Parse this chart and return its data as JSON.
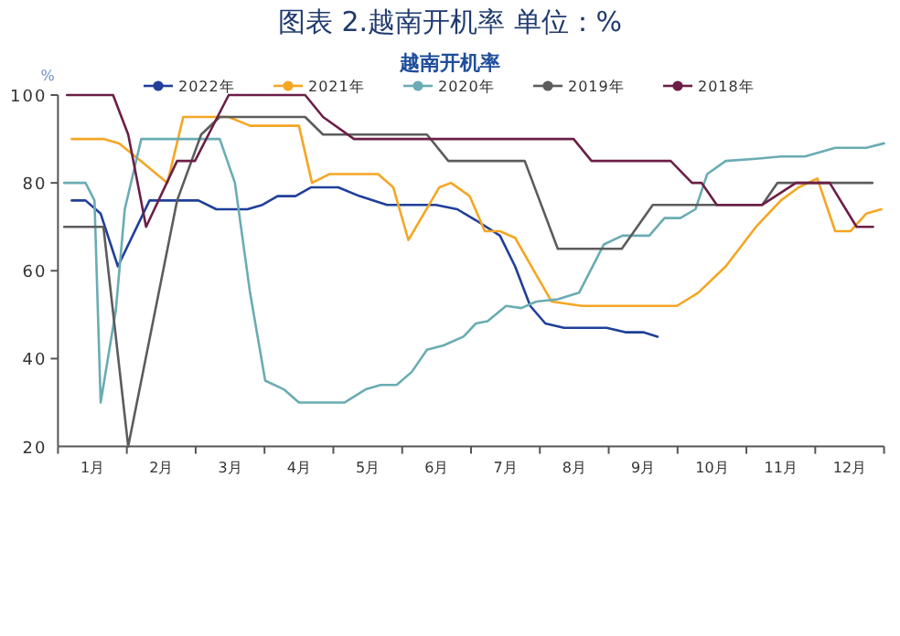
{
  "chart_data": {
    "type": "line",
    "title": "图表 2.越南开机率  单位：%",
    "subtitle": "越南开机率",
    "ylabel": "%",
    "legend": "top",
    "grid": false,
    "xlim": [
      0,
      12
    ],
    "xticks": [
      {
        "value": 0.5,
        "label": "1月"
      },
      {
        "value": 1.5,
        "label": "2月"
      },
      {
        "value": 2.5,
        "label": "3月"
      },
      {
        "value": 3.5,
        "label": "4月"
      },
      {
        "value": 4.5,
        "label": "5月"
      },
      {
        "value": 5.5,
        "label": "6月"
      },
      {
        "value": 6.5,
        "label": "7月"
      },
      {
        "value": 7.5,
        "label": "8月"
      },
      {
        "value": 8.5,
        "label": "9月"
      },
      {
        "value": 9.5,
        "label": "10月"
      },
      {
        "value": 10.5,
        "label": "11月"
      },
      {
        "value": 11.5,
        "label": "12月"
      }
    ],
    "ylim": [
      20,
      100
    ],
    "yticks": [
      20,
      40,
      60,
      80,
      100
    ],
    "series": [
      {
        "name": "2022年",
        "color": "#1f3f99",
        "x": [
          0.2,
          0.4,
          0.62,
          0.87,
          1.33,
          2.04,
          2.3,
          2.75,
          2.97,
          3.19,
          3.45,
          3.68,
          4.07,
          4.38,
          4.78,
          5.49,
          5.8,
          6.07,
          6.42,
          6.64,
          6.86,
          7.08,
          7.35,
          7.97,
          8.24,
          8.5,
          8.71
        ],
        "values": [
          76,
          76,
          73,
          61,
          76,
          76,
          74,
          74,
          75,
          77,
          77,
          79,
          79,
          77,
          75,
          75,
          74,
          71.5,
          68,
          61,
          52,
          48,
          47,
          47,
          46,
          46,
          45
        ]
      },
      {
        "name": "2021年",
        "color": "#f5a623",
        "x": [
          0.2,
          0.66,
          0.89,
          1.2,
          1.59,
          1.82,
          2.48,
          2.79,
          3.5,
          3.69,
          3.94,
          4.65,
          4.87,
          5.09,
          5.54,
          5.71,
          5.98,
          6.2,
          6.42,
          6.64,
          6.95,
          7.17,
          7.61,
          8.99,
          9.3,
          9.7,
          10.14,
          10.5,
          10.76,
          11.03,
          11.29,
          11.51,
          11.74,
          11.96
        ],
        "values": [
          90,
          90,
          89,
          85,
          80,
          95,
          95,
          93,
          93,
          80,
          82,
          82,
          79,
          67,
          79,
          80,
          77,
          69,
          69,
          67.5,
          59,
          53,
          52,
          52,
          55,
          61,
          70,
          76,
          79,
          81,
          69,
          69,
          73,
          74
        ]
      },
      {
        "name": "2020年",
        "color": "#6aacb3",
        "x": [
          0.09,
          0.4,
          0.53,
          0.62,
          0.84,
          0.97,
          1.21,
          2.35,
          2.57,
          2.79,
          3.01,
          3.28,
          3.5,
          4.16,
          4.47,
          4.69,
          4.92,
          5.14,
          5.36,
          5.6,
          5.89,
          6.07,
          6.24,
          6.51,
          6.73,
          6.95,
          7.26,
          7.57,
          7.93,
          8.2,
          8.59,
          8.81,
          9.04,
          9.26,
          9.43,
          9.7,
          10.14,
          10.5,
          10.85,
          11.29,
          11.74,
          12.0
        ],
        "values": [
          80,
          80,
          76,
          30,
          51,
          74,
          90,
          90,
          80,
          55,
          35,
          33,
          30,
          30,
          33,
          34,
          34,
          37,
          42,
          43,
          45,
          48,
          48.5,
          52,
          51.5,
          53,
          53.5,
          55,
          66,
          68,
          68,
          72,
          72,
          74,
          82,
          85,
          85.5,
          86,
          86,
          88,
          88,
          89
        ]
      },
      {
        "name": "2019年",
        "color": "#5c5c5c",
        "x": [
          0.09,
          0.66,
          1.02,
          1.73,
          2.08,
          2.35,
          3.59,
          3.85,
          5.36,
          5.67,
          6.78,
          7.26,
          8.19,
          8.64,
          10.23,
          10.45,
          11.83
        ],
        "values": [
          70,
          70,
          20,
          76,
          91,
          95,
          95,
          91,
          91,
          85,
          85,
          65,
          65,
          75,
          75,
          80,
          80
        ]
      },
      {
        "name": "2018年",
        "color": "#6b1f47",
        "x": [
          0.13,
          0.8,
          1.02,
          1.28,
          1.73,
          1.99,
          2.48,
          3.59,
          3.85,
          4.3,
          7.49,
          7.75,
          8.9,
          9.21,
          9.35,
          9.57,
          10.23,
          10.72,
          11.21,
          11.6,
          11.84
        ],
        "values": [
          100,
          100,
          91,
          70,
          85,
          85,
          100,
          100,
          95,
          90,
          90,
          85,
          85,
          80,
          80,
          75,
          75,
          80,
          80,
          70,
          70
        ]
      }
    ]
  }
}
